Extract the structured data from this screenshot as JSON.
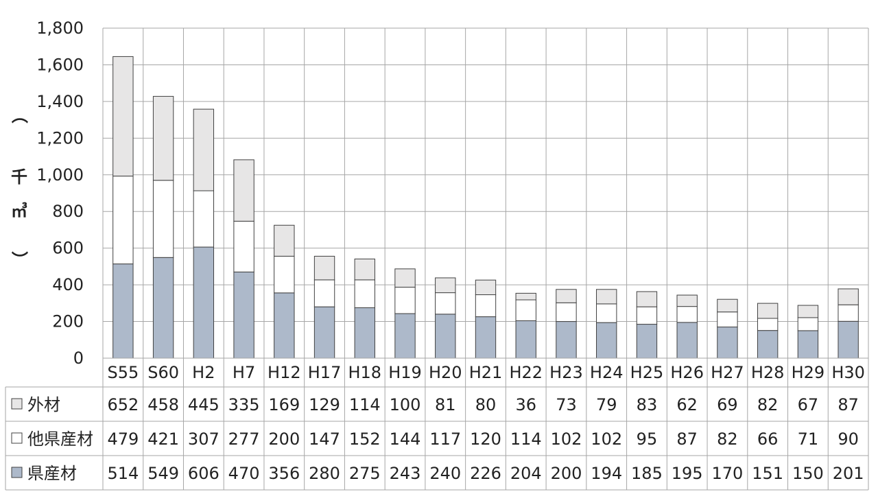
{
  "chart_data": {
    "type": "bar",
    "stacked": true,
    "categories": [
      "S55",
      "S60",
      "H2",
      "H7",
      "H12",
      "H17",
      "H18",
      "H19",
      "H20",
      "H21",
      "H22",
      "H23",
      "H24",
      "H25",
      "H26",
      "H27",
      "H28",
      "H29",
      "H30"
    ],
    "series": [
      {
        "name": "県産材",
        "color": "#adb9ca",
        "values": [
          514,
          549,
          606,
          470,
          356,
          280,
          275,
          243,
          240,
          226,
          204,
          200,
          194,
          185,
          195,
          170,
          151,
          150,
          201
        ]
      },
      {
        "name": "他県産材",
        "color": "#ffffff",
        "values": [
          479,
          421,
          307,
          277,
          200,
          147,
          152,
          144,
          117,
          120,
          114,
          102,
          102,
          95,
          87,
          82,
          66,
          71,
          90
        ]
      },
      {
        "name": "外材",
        "color": "#e7e6e6",
        "values": [
          652,
          458,
          445,
          335,
          169,
          129,
          114,
          100,
          81,
          80,
          36,
          73,
          79,
          83,
          62,
          69,
          82,
          67,
          87
        ]
      }
    ],
    "table_rows": [
      "外材",
      "他県産材",
      "県産材"
    ],
    "ylim": [
      0,
      1800
    ],
    "yticks": [
      "0",
      "200",
      "400",
      "600",
      "800",
      "1,000",
      "1,200",
      "1,400",
      "1,600",
      "1,800"
    ],
    "ylabel": [
      "（",
      "千",
      "㎥",
      "）"
    ],
    "grid": true,
    "legend": "data-table"
  }
}
